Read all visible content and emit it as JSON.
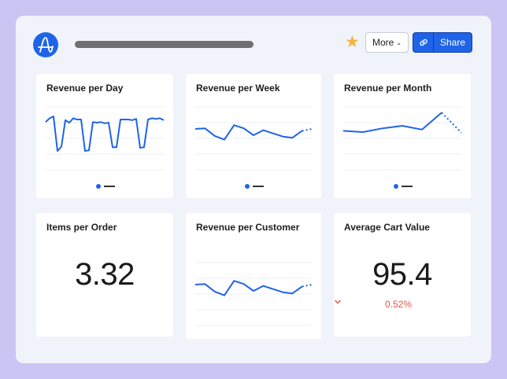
{
  "header": {
    "logo_icon": "amplitude-logo-icon",
    "star_icon": "star-icon",
    "more_label": "More",
    "share_label": "Share",
    "share_icon": "link-icon",
    "accent": "#1f64e8"
  },
  "cards": [
    {
      "title": "Revenue per Day"
    },
    {
      "title": "Revenue per Week"
    },
    {
      "title": "Revenue per Month"
    },
    {
      "title": "Items per Order",
      "value": "3.32"
    },
    {
      "title": "Revenue per Customer"
    },
    {
      "title": "Average Cart Value",
      "value": "95.4",
      "delta": "0.52%",
      "delta_direction": "down",
      "delta_color": "#e5534b"
    }
  ],
  "chart_data": [
    {
      "card": "Revenue per Day",
      "type": "line",
      "ylim": [
        0,
        100
      ],
      "grid": true,
      "line_color": "#1f64e8",
      "values": [
        76,
        82,
        85,
        30,
        37,
        79,
        75,
        82,
        80,
        80,
        30,
        31,
        76,
        75,
        76,
        74,
        75,
        36,
        36,
        80,
        80,
        80,
        79,
        81,
        35,
        36,
        80,
        82,
        81,
        82,
        79
      ],
      "projected": []
    },
    {
      "card": "Revenue per Week",
      "type": "line",
      "ylim": [
        0,
        100
      ],
      "grid": true,
      "line_color": "#1f64e8",
      "values": [
        65,
        66,
        54,
        48,
        71,
        66,
        55,
        63,
        58,
        53,
        51,
        62
      ],
      "projected": [
        65
      ]
    },
    {
      "card": "Revenue per Month",
      "type": "line",
      "ylim": [
        0,
        100
      ],
      "grid": true,
      "line_color": "#1f64e8",
      "values": [
        62,
        60,
        66,
        70,
        64,
        91
      ],
      "projected": [
        59
      ]
    },
    {
      "card": "Revenue per Customer",
      "type": "line",
      "ylim": [
        0,
        100
      ],
      "grid": true,
      "line_color": "#1f64e8",
      "values": [
        65,
        66,
        54,
        48,
        71,
        66,
        55,
        63,
        58,
        53,
        51,
        62
      ],
      "projected": [
        65
      ]
    }
  ]
}
